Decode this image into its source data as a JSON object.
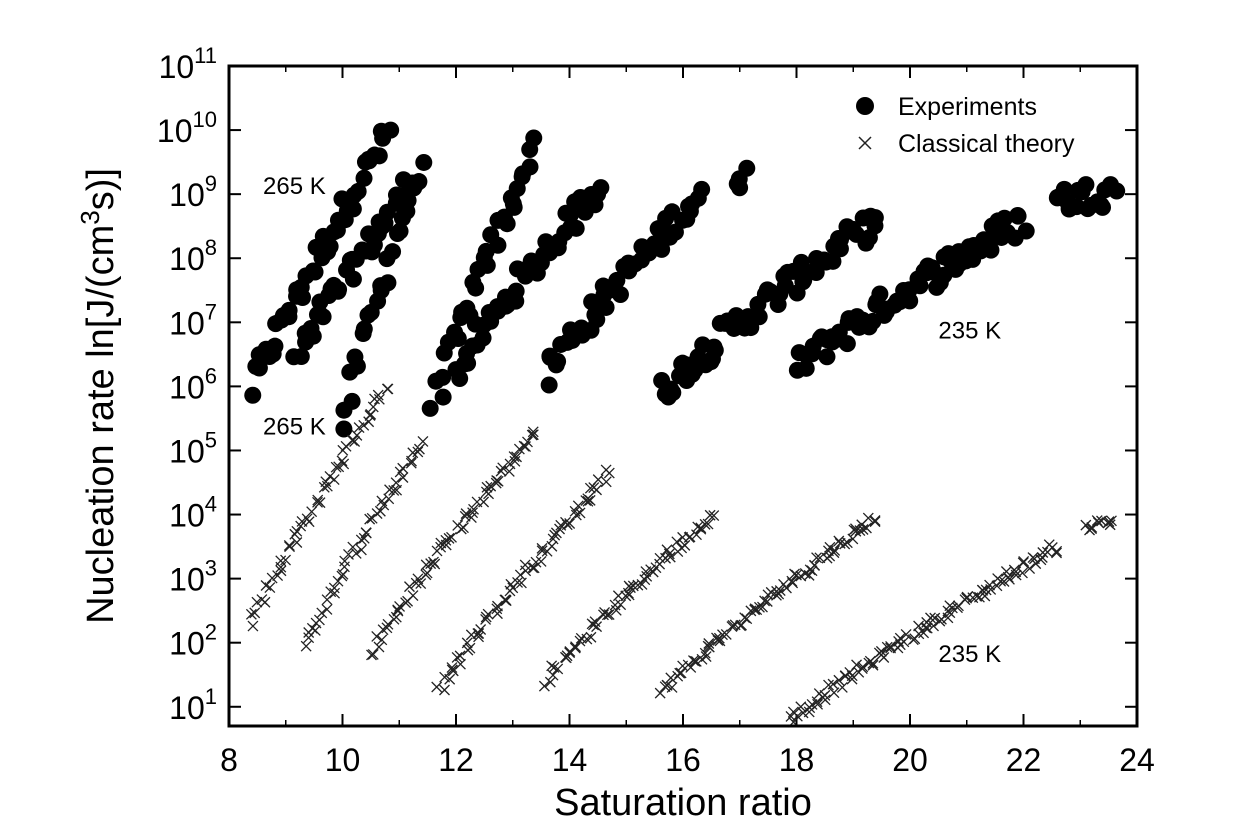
{
  "chart_data": {
    "type": "scatter",
    "title": "",
    "xlabel": "Saturation ratio",
    "ylabel_prefix": "Nucleation rate ln[J/(cm",
    "ylabel_sup": "3",
    "ylabel_suffix": "s)]",
    "xlim": [
      8,
      24
    ],
    "ylim_exponent": [
      0.7,
      11
    ],
    "yscale": "log10",
    "xticks": [
      8,
      10,
      12,
      14,
      16,
      18,
      20,
      22,
      24
    ],
    "yticks": [
      {
        "base": "10",
        "exp": "1",
        "value": 1
      },
      {
        "base": "10",
        "exp": "2",
        "value": 2
      },
      {
        "base": "10",
        "exp": "3",
        "value": 3
      },
      {
        "base": "10",
        "exp": "4",
        "value": 4
      },
      {
        "base": "10",
        "exp": "5",
        "value": 5
      },
      {
        "base": "10",
        "exp": "6",
        "value": 6
      },
      {
        "base": "10",
        "exp": "7",
        "value": 7
      },
      {
        "base": "10",
        "exp": "8",
        "value": 8
      },
      {
        "base": "10",
        "exp": "9",
        "value": 9
      },
      {
        "base": "10",
        "exp": "10",
        "value": 10
      },
      {
        "base": "10",
        "exp": "11",
        "value": 11
      }
    ],
    "legend": {
      "position": "top-right",
      "entries": [
        {
          "label": "Experiments",
          "marker": "filled-circle"
        },
        {
          "label": "Classical theory",
          "marker": "x"
        }
      ]
    },
    "annotations": [
      {
        "text": "265 K",
        "x": 8.6,
        "y_log10": 9.0
      },
      {
        "text": "265 K",
        "x": 8.6,
        "y_log10": 5.25
      },
      {
        "text": "235 K",
        "x": 20.5,
        "y_log10": 6.75
      },
      {
        "text": "235 K",
        "x": 20.5,
        "y_log10": 1.7
      }
    ],
    "series": [
      {
        "name": "Experiments",
        "marker": "filled-circle",
        "groups": [
          {
            "label": "265 K",
            "x_range": [
              8.4,
              10.8
            ],
            "logJ_range": [
              5.95,
              9.95
            ]
          },
          {
            "label": "",
            "x_range": [
              9.2,
              11.4
            ],
            "logJ_range": [
              6.4,
              9.4
            ]
          },
          {
            "label": "",
            "x_range": [
              10.0,
              11.3
            ],
            "logJ_range": [
              5.4,
              9.3
            ]
          },
          {
            "label": "",
            "x_range": [
              11.6,
              13.4
            ],
            "logJ_range": [
              5.7,
              9.75
            ]
          },
          {
            "label": "",
            "x_range": [
              12.0,
              14.6
            ],
            "logJ_range": [
              6.2,
              9.2
            ]
          },
          {
            "label": "",
            "x_range": [
              13.6,
              16.3
            ],
            "logJ_range": [
              6.2,
              9.0
            ]
          },
          {
            "label": "",
            "x_range": [
              15.6,
              19.4
            ],
            "logJ_range": [
              5.9,
              8.6
            ]
          },
          {
            "label": "",
            "x_range": [
              16.9,
              17.1
            ],
            "logJ_range": [
              9.1,
              9.2
            ]
          },
          {
            "label": "235 K",
            "x_range": [
              18.0,
              22.0
            ],
            "logJ_range": [
              6.3,
              8.6
            ]
          },
          {
            "label": "",
            "x_range": [
              22.6,
              23.6
            ],
            "logJ_range": [
              8.9,
              9.05
            ]
          }
        ]
      },
      {
        "name": "Classical theory",
        "marker": "x",
        "groups": [
          {
            "label": "265 K",
            "x_range": [
              8.4,
              10.8
            ],
            "logJ_range": [
              2.3,
              6.0
            ]
          },
          {
            "label": "",
            "x_range": [
              9.3,
              11.4
            ],
            "logJ_range": [
              1.9,
              5.1
            ]
          },
          {
            "label": "",
            "x_range": [
              10.5,
              13.4
            ],
            "logJ_range": [
              1.8,
              5.3
            ]
          },
          {
            "label": "",
            "x_range": [
              11.7,
              14.7
            ],
            "logJ_range": [
              1.25,
              4.65
            ]
          },
          {
            "label": "",
            "x_range": [
              13.6,
              16.5
            ],
            "logJ_range": [
              1.4,
              4.0
            ]
          },
          {
            "label": "",
            "x_range": [
              15.6,
              19.4
            ],
            "logJ_range": [
              1.2,
              3.95
            ]
          },
          {
            "label": "235 K",
            "x_range": [
              17.9,
              22.6
            ],
            "logJ_range": [
              0.78,
              3.5
            ]
          },
          {
            "label": "",
            "x_range": [
              23.1,
              23.6
            ],
            "logJ_range": [
              3.8,
              3.9
            ]
          }
        ]
      }
    ]
  }
}
